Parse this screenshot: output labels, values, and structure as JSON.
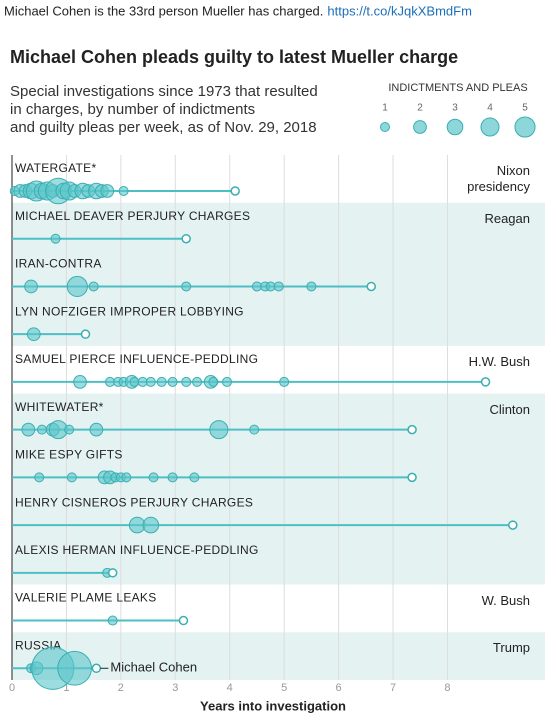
{
  "tweet": {
    "text": "Michael Cohen is the 33rd person Mueller has charged.",
    "link": "https://t.co/kJqkXBmdFm"
  },
  "chart_data": {
    "type": "bubble",
    "title": "Michael Cohen pleads guilty to latest Mueller charge",
    "subtitle": [
      "Special investigations since 1973 that resulted",
      "in charges, by number of indictments",
      "and guilty pleas per week, as of Nov. 29, 2018"
    ],
    "legend_title": "INDICTMENTS AND PLEAS",
    "size_legend": [
      1,
      2,
      3,
      4,
      5
    ],
    "color": "#5cc6ca",
    "xlabel": "Years into investigation",
    "xlim": [
      0,
      9.7
    ],
    "xticks": [
      0,
      1,
      2,
      3,
      4,
      5,
      6,
      7,
      8
    ],
    "grid": true,
    "annotation": "Michael Cohen",
    "groups": [
      {
        "label": "Nixon presidency",
        "series": [
          {
            "name": "WATERGATE*",
            "end": 4.1,
            "x": [
              0.05,
              0.15,
              0.25,
              0.35,
              0.45,
              0.55,
              0.65,
              0.75,
              0.85,
              0.95,
              1.05,
              1.15,
              1.3,
              1.4,
              1.55,
              1.65,
              1.75,
              2.05
            ],
            "size": [
              1,
              2,
              2,
              3,
              5,
              3,
              4,
              2,
              8,
              3,
              4,
              2,
              3,
              2,
              3,
              2,
              2,
              1
            ]
          }
        ]
      },
      {
        "label": "Reagan",
        "series": [
          {
            "name": "MICHAEL DEAVER PERJURY CHARGES",
            "end": 3.2,
            "x": [
              0.8
            ],
            "size": [
              1
            ]
          },
          {
            "name": "IRAN-CONTRA",
            "end": 6.6,
            "x": [
              0.35,
              1.2,
              1.5,
              3.2,
              4.5,
              4.65,
              4.75,
              4.9,
              5.5
            ],
            "size": [
              2,
              5,
              1,
              1,
              1,
              1,
              1,
              1,
              1
            ]
          },
          {
            "name": "LYN NOFZIGER IMPROPER LOBBYING",
            "end": 1.35,
            "x": [
              0.4
            ],
            "size": [
              2
            ]
          }
        ]
      },
      {
        "label": "H.W. Bush",
        "series": [
          {
            "name": "SAMUEL PIERCE INFLUENCE-PEDDLING",
            "end": 8.7,
            "x": [
              1.25,
              1.8,
              1.95,
              2.05,
              2.2,
              2.25,
              2.4,
              2.55,
              2.75,
              2.95,
              3.2,
              3.4,
              3.65,
              3.7,
              3.95,
              5.0
            ],
            "size": [
              2,
              1,
              1,
              1,
              2,
              1,
              1,
              1,
              1,
              1,
              1,
              1,
              2,
              1,
              1,
              1
            ]
          }
        ]
      },
      {
        "label": "Clinton",
        "series": [
          {
            "name": "WHITEWATER*",
            "end": 7.35,
            "x": [
              0.3,
              0.55,
              0.75,
              0.85,
              1.05,
              1.55,
              3.8,
              4.45
            ],
            "size": [
              2,
              1,
              2,
              4,
              1,
              2,
              4,
              1
            ]
          },
          {
            "name": "MIKE ESPY GIFTS",
            "end": 7.35,
            "x": [
              0.5,
              1.1,
              1.7,
              1.8,
              1.9,
              2.0,
              2.1,
              2.6,
              2.95,
              3.35
            ],
            "size": [
              1,
              1,
              2,
              2,
              1,
              1,
              1,
              1,
              1,
              1
            ]
          },
          {
            "name": "HENRY CISNEROS PERJURY CHARGES",
            "end": 9.2,
            "x": [
              2.3,
              2.55
            ],
            "size": [
              3,
              3
            ]
          },
          {
            "name": "ALEXIS HERMAN INFLUENCE-PEDDLING",
            "end": 1.85,
            "x": [
              1.75
            ],
            "size": [
              1
            ]
          }
        ]
      },
      {
        "label": "W. Bush",
        "series": [
          {
            "name": "VALERIE PLAME LEAKS",
            "end": 3.15,
            "x": [
              1.85
            ],
            "size": [
              1
            ]
          }
        ]
      },
      {
        "label": "Trump",
        "series": [
          {
            "name": "RUSSIA",
            "end": 1.55,
            "x": [
              0.35,
              0.45,
              0.75,
              1.15
            ],
            "size": [
              1,
              2,
              22,
              14
            ]
          }
        ]
      }
    ]
  }
}
